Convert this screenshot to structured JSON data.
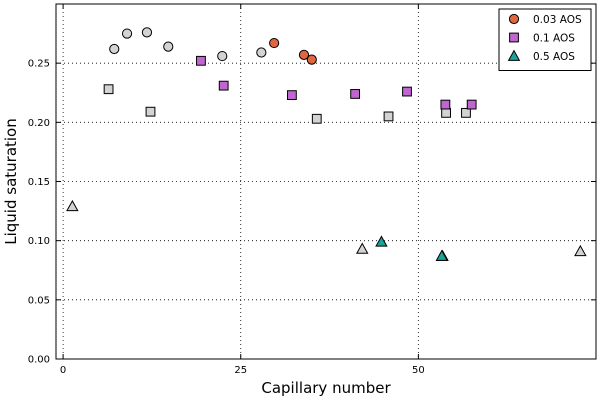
{
  "chart_data": {
    "type": "scatter",
    "xlabel": "Capillary number",
    "ylabel": "Liquid saturation",
    "xlim": [
      -1,
      75
    ],
    "ylim": [
      0,
      0.3
    ],
    "xticks": [
      0,
      25,
      50
    ],
    "yticks": [
      0.0,
      0.05,
      0.1,
      0.15,
      0.2,
      0.25
    ],
    "xtick_labels": [
      "0",
      "25",
      "50"
    ],
    "ytick_labels": [
      "0.00",
      "0.05",
      "0.10",
      "0.15",
      "0.20",
      "0.25"
    ],
    "grid": true,
    "legend_position": "top-right",
    "series": [
      {
        "name": "0.03 AOS",
        "marker": "circle",
        "color": "#e0663e",
        "points": [
          [
            29.7,
            0.267
          ],
          [
            33.9,
            0.257
          ],
          [
            35.0,
            0.253
          ]
        ]
      },
      {
        "name": "0.1 AOS",
        "marker": "square",
        "color": "#c066d0",
        "points": [
          [
            19.4,
            0.252
          ],
          [
            22.6,
            0.231
          ],
          [
            32.2,
            0.223
          ],
          [
            41.1,
            0.224
          ],
          [
            48.4,
            0.226
          ],
          [
            53.8,
            0.215
          ],
          [
            57.5,
            0.215
          ]
        ]
      },
      {
        "name": "0.5 AOS",
        "marker": "triangle",
        "color": "#1aa39b",
        "points": [
          [
            44.8,
            0.099
          ],
          [
            53.3,
            0.087
          ]
        ]
      },
      {
        "name": "",
        "marker": "circle",
        "color": "#d3d3d3",
        "points": [
          [
            7.2,
            0.262
          ],
          [
            9.0,
            0.275
          ],
          [
            11.8,
            0.276
          ],
          [
            14.8,
            0.264
          ],
          [
            22.4,
            0.256
          ],
          [
            27.9,
            0.259
          ]
        ]
      },
      {
        "name": "",
        "marker": "square",
        "color": "#d3d3d3",
        "points": [
          [
            6.4,
            0.228
          ],
          [
            12.3,
            0.209
          ],
          [
            35.7,
            0.203
          ],
          [
            45.8,
            0.205
          ],
          [
            53.9,
            0.208
          ],
          [
            56.7,
            0.208
          ]
        ]
      },
      {
        "name": "",
        "marker": "triangle",
        "color": "#d3d3d3",
        "points": [
          [
            1.3,
            0.129
          ],
          [
            42.1,
            0.093
          ],
          [
            53.4,
            0.087
          ],
          [
            72.8,
            0.091
          ]
        ]
      }
    ]
  }
}
